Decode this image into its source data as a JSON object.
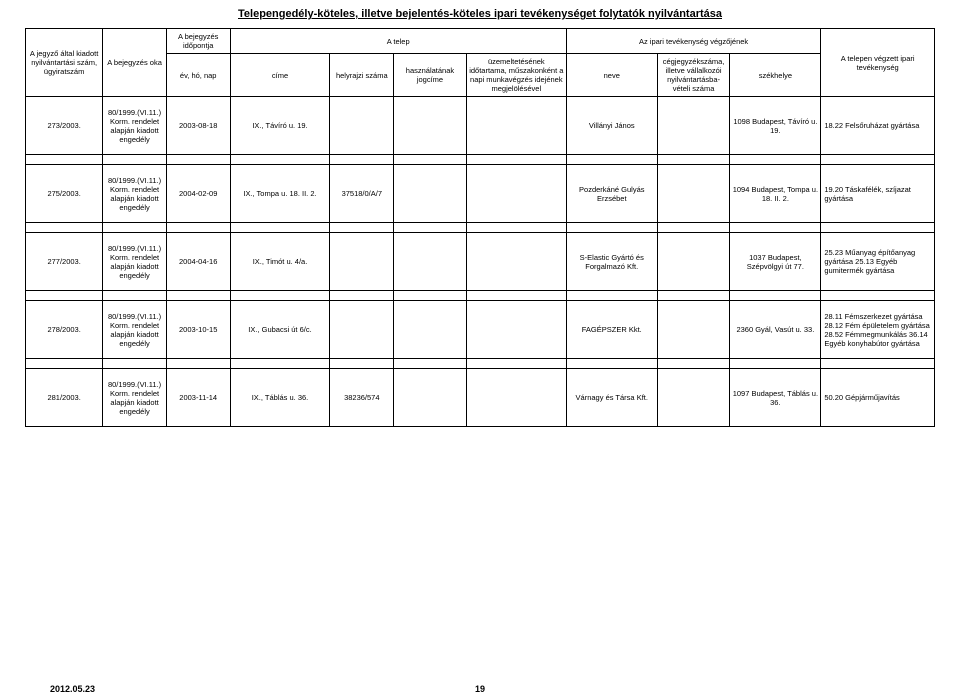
{
  "title": "Telepengedély-köteles, illetve bejelentés-köteles ipari tevékenységet folytatók nyilvántartása",
  "headers": {
    "h1": "A jegyző által kiadott nyilvántartási szám, ügyiratszám",
    "h2": "A bejegyzés oka",
    "h3": "A bejegyzés időpontja",
    "h4": "A telep",
    "h5": "Az ipari tevékenység végzőjének",
    "h6": "A telepen végzett ipari tevékenység",
    "s1": "év, hó, nap",
    "s2": "címe",
    "s3": "helyrajzi száma",
    "s4": "használatának jogcíme",
    "s5": "üzemeltetésének időtartama, műszakonként a napi munkavégzés idejének megjelölésével",
    "s6": "neve",
    "s7": "cégjegyzékszáma, illetve vállalkozói nyilvántartásba-vételi száma",
    "s8": "székhelye"
  },
  "rows": [
    {
      "c1": "273/2003.",
      "c2": "80/1999.(VI.11.) Korm. rendelet alapján kiadott engedély",
      "c3": "2003-08-18",
      "c4": "IX., Távíró u. 19.",
      "c5": "",
      "c6": "",
      "c7": "",
      "c8": "Villányi János",
      "c9": "",
      "c10": "1098 Budapest, Távíró u. 19.",
      "c11": "18.22 Felsőruházat gyártása"
    },
    {
      "c1": "275/2003.",
      "c2": "80/1999.(VI.11.) Korm. rendelet alapján kiadott engedély",
      "c3": "2004-02-09",
      "c4": "IX., Tompa u. 18. II. 2.",
      "c5": "37518/0/A/7",
      "c6": "",
      "c7": "",
      "c8": "Pozderkáné Gulyás Erzsébet",
      "c9": "",
      "c10": "1094 Budapest, Tompa u. 18. II. 2.",
      "c11": "19.20 Táskafélék, szíjazat gyártása"
    },
    {
      "c1": "277/2003.",
      "c2": "80/1999.(VI.11.) Korm. rendelet alapján kiadott engedély",
      "c3": "2004-04-16",
      "c4": "IX., Timót u. 4/a.",
      "c5": "",
      "c6": "",
      "c7": "",
      "c8": "S-Elastic Gyártó és Forgalmazó Kft.",
      "c9": "",
      "c10": "1037 Budapest, Szépvölgyi út 77.",
      "c11": "25.23 Műanyag építőanyag gyártása\n25.13 Egyéb gumitermék gyártása"
    },
    {
      "c1": "278/2003.",
      "c2": "80/1999.(VI.11.) Korm. rendelet alapján kiadott engedély",
      "c3": "2003-10-15",
      "c4": "IX., Gubacsi út 6/c.",
      "c5": "",
      "c6": "",
      "c7": "",
      "c8": "FAGÉPSZER Kkt.",
      "c9": "",
      "c10": "2360 Gyál, Vasút u. 33.",
      "c11": "28.11 Fémszerkezet gyártása   28.12 Fém épületelem gyártása           28.52 Fémmegmunkálás   36.14 Egyéb konyhabútor gyártása"
    },
    {
      "c1": "281/2003.",
      "c2": "80/1999.(VI.11.) Korm. rendelet alapján kiadott engedély",
      "c3": "2003-11-14",
      "c4": "IX., Táblás u. 36.",
      "c5": "38236/574",
      "c6": "",
      "c7": "",
      "c8": "Várnagy és Társa Kft.",
      "c9": "",
      "c10": "1097 Budapest, Táblás u. 36.",
      "c11": "50.20 Gépjárműjavítás"
    }
  ],
  "footer": {
    "date": "2012.05.23",
    "page": "19"
  }
}
